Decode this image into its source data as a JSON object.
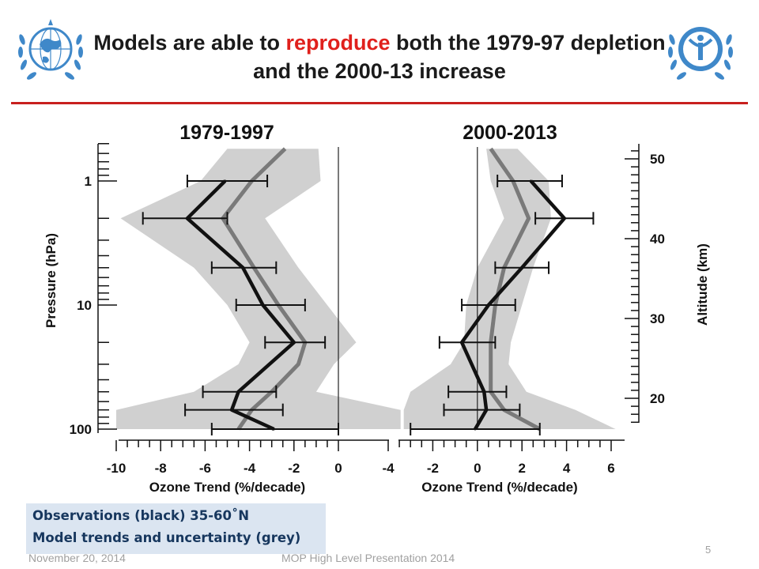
{
  "slide": {
    "title_part1": "Models are able to ",
    "title_highlight": "reproduce",
    "title_part2": " both the 1979-97 depletion and the 2000-13 increase",
    "highlight_color": "#e0201c",
    "rule_color": "#c8201e",
    "accent_color": "#3f88c9",
    "left_logo": "wmo-emblem",
    "right_logo": "unep-emblem"
  },
  "legend": {
    "line1": "Observations (black) 35-60˚N",
    "line2": "Model trends and uncertainty (grey)",
    "box_color": "#dbe5f1",
    "text_color": "#17375e"
  },
  "footer": {
    "date": "November 20, 2014",
    "presentation": "MOP High Level Presentation 2014",
    "page_number": "5"
  },
  "chart_data": [
    {
      "type": "line",
      "title": "1979-1997",
      "xlabel": "Ozone Trend (%/decade)",
      "ylabel": "Pressure  (hPa)",
      "y_scale": "log",
      "y_reversed": true,
      "xlim": [
        -10,
        0
      ],
      "x_ticks": [
        "-10",
        "-8",
        "-6",
        "-4",
        "-2",
        "0"
      ],
      "y_tick_labels": [
        "1",
        "10",
        "100"
      ],
      "y_tick_values": [
        1,
        10,
        100
      ],
      "zero_line": true,
      "series": [
        {
          "name": "Observations (black)",
          "color": "#111111",
          "pressure_hPa": [
            1,
            2,
            5,
            10,
            20,
            50,
            70,
            100
          ],
          "trend": [
            -5.1,
            -6.8,
            -4.3,
            -3.4,
            -2.0,
            -4.5,
            -4.8,
            -2.9
          ],
          "error_low": [
            -6.8,
            -8.8,
            -5.7,
            -4.6,
            -3.3,
            -6.1,
            -6.9,
            -5.7
          ],
          "error_high": [
            -3.2,
            -5.0,
            -2.8,
            -1.5,
            -0.6,
            -2.8,
            -2.5,
            0
          ]
        },
        {
          "name": "Model trends and uncertainty (grey)",
          "color": "#7a7a7a",
          "band_color": "#d0d0d0",
          "pressure_hPa": [
            0.55,
            1,
            2,
            5,
            10,
            20,
            30,
            50,
            70,
            100
          ],
          "trend": [
            -2.4,
            -3.9,
            -5.2,
            -3.8,
            -2.7,
            -1.5,
            -1.8,
            -3.0,
            -3.9,
            -4.5
          ],
          "band_low": [
            -5.0,
            -6.2,
            -9.8,
            -6.5,
            -5.0,
            -4.0,
            -4.5,
            -6.5,
            -10.0,
            -10.0
          ],
          "band_high": [
            -0.9,
            -0.8,
            -3.3,
            -1.8,
            -0.5,
            0.8,
            -0.2,
            -1.0,
            2.8,
            2.8
          ]
        }
      ]
    },
    {
      "type": "line",
      "title": "2000-2013",
      "xlabel": "Ozone Trend (%/decade)",
      "ylabel": "Altitude  (km)",
      "y_secondary": "altitude",
      "xlim": [
        -4,
        6
      ],
      "x_ticks": [
        "-4",
        "-2",
        "0",
        "2",
        "4",
        "6"
      ],
      "y_tick_labels": [
        "20",
        "30",
        "40",
        "50"
      ],
      "y_tick_values_km": [
        20,
        30,
        40,
        50
      ],
      "zero_line": true,
      "series": [
        {
          "name": "Observations (black)",
          "color": "#111111",
          "pressure_hPa": [
            1,
            2,
            5,
            10,
            20,
            50,
            70,
            100
          ],
          "trend": [
            2.4,
            3.9,
            2.0,
            0.5,
            -0.7,
            0.3,
            0.4,
            -0.1
          ],
          "error_low": [
            0.9,
            2.6,
            0.8,
            -0.7,
            -1.7,
            -1.3,
            -1.5,
            -3.0
          ],
          "error_high": [
            3.8,
            5.2,
            3.2,
            1.7,
            0.8,
            1.3,
            1.9,
            2.8
          ]
        },
        {
          "name": "Model trends and uncertainty (grey)",
          "color": "#7a7a7a",
          "band_color": "#d0d0d0",
          "pressure_hPa": [
            0.55,
            1,
            2,
            5,
            10,
            20,
            30,
            50,
            70,
            100
          ],
          "trend": [
            0.6,
            1.6,
            2.3,
            1.2,
            0.8,
            0.6,
            0.6,
            0.6,
            1.2,
            2.8
          ],
          "band_low": [
            0.4,
            0.6,
            1.2,
            0.0,
            -0.5,
            -0.6,
            -1.2,
            -3.0,
            -3.3,
            -3.3
          ],
          "band_high": [
            1.8,
            3.2,
            3.3,
            2.5,
            2.0,
            1.5,
            1.4,
            2.2,
            4.4,
            6.2
          ]
        }
      ]
    }
  ]
}
